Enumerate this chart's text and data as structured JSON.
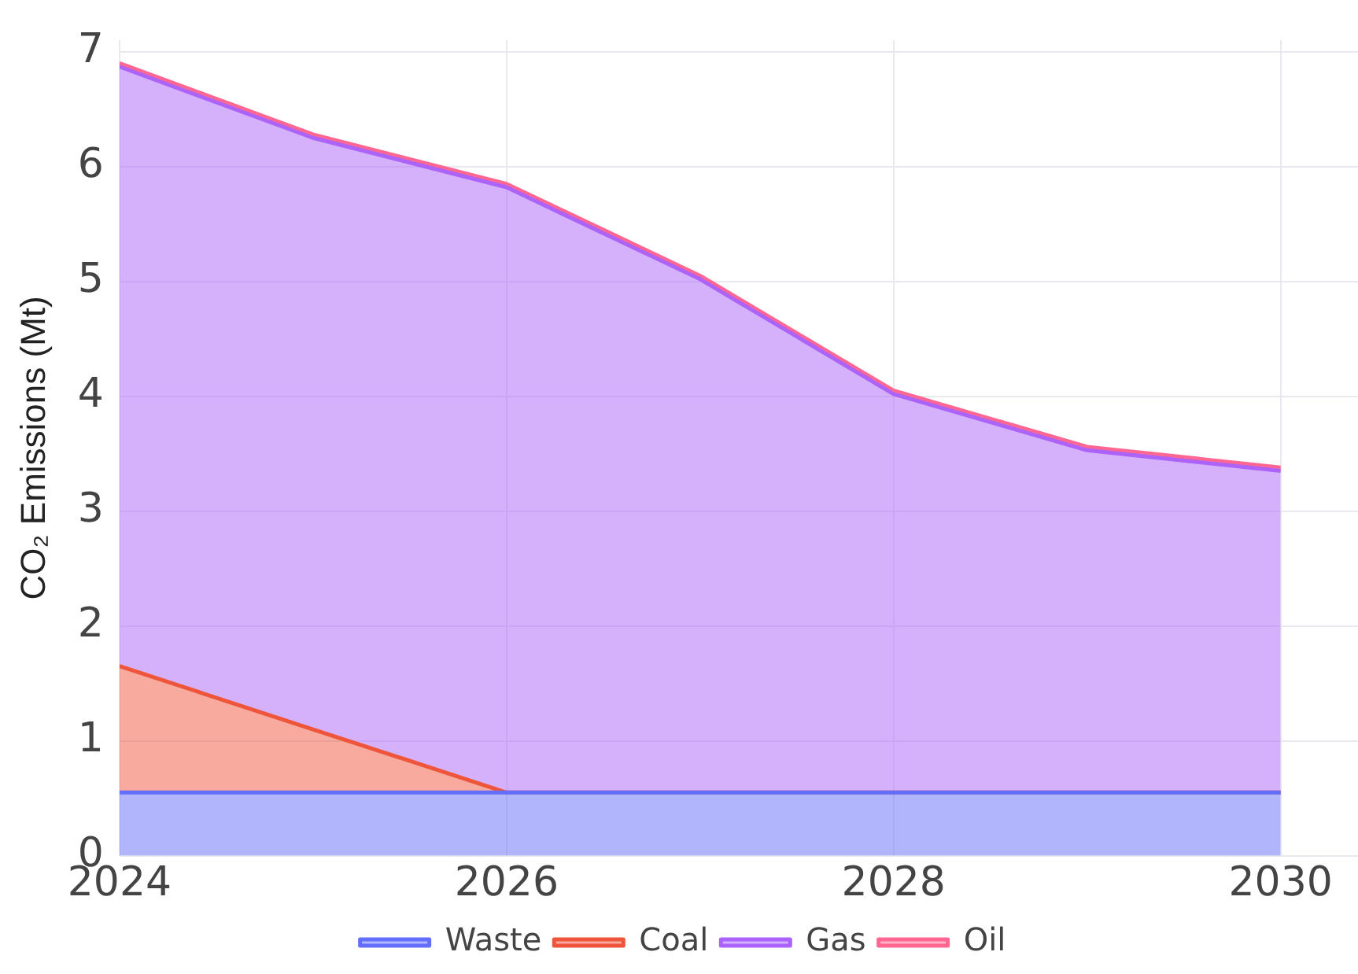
{
  "chart_data": {
    "type": "area",
    "ylabel": "CO₂ Emissions (Mt)",
    "stacked": true,
    "x": [
      2024,
      2025,
      2026,
      2027,
      2028,
      2029,
      2030
    ],
    "series": [
      {
        "name": "Waste",
        "color": "#636efa",
        "values": [
          0.55,
          0.55,
          0.55,
          0.55,
          0.55,
          0.55,
          0.55
        ]
      },
      {
        "name": "Coal",
        "color": "#ef553b",
        "values": [
          1.1,
          0.55,
          0,
          0,
          0,
          0,
          0
        ]
      },
      {
        "name": "Gas",
        "color": "#ab63fa",
        "values": [
          5.22,
          5.15,
          5.27,
          4.47,
          3.47,
          2.98,
          2.8
        ]
      },
      {
        "name": "Oil",
        "color": "#ff6692",
        "values": [
          0.03,
          0.03,
          0.03,
          0.03,
          0.03,
          0.03,
          0.03
        ]
      }
    ],
    "xlim": [
      2024,
      2030.4
    ],
    "xticks": [
      2024,
      2026,
      2028,
      2030
    ],
    "ylim": [
      0,
      7.1
    ],
    "yticks": [
      0,
      1,
      2,
      3,
      4,
      5,
      6,
      7
    ],
    "grid": true,
    "legend": "bottom"
  }
}
